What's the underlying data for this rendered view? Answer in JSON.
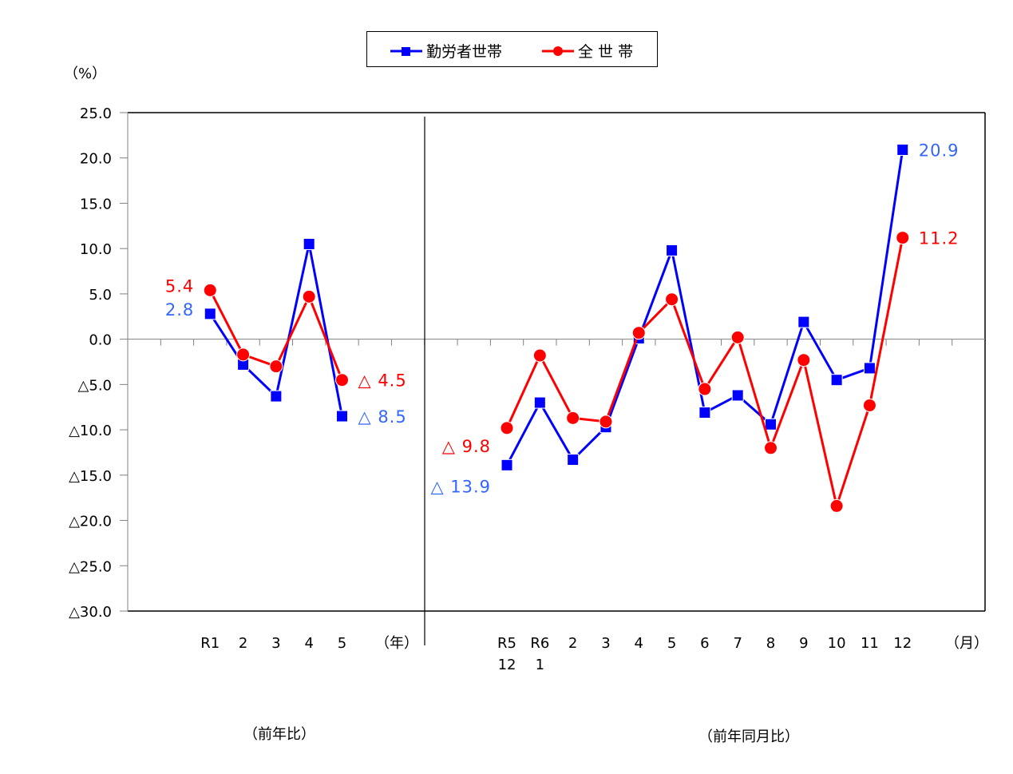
{
  "legend": {
    "series_worker": "勤労者世帯",
    "series_all": "全 世 帯"
  },
  "axis": {
    "y_unit": "（%）",
    "annual_unit": "（年）",
    "monthly_unit": "（月）"
  },
  "sections": {
    "annual": "（前年比）",
    "monthly": "（前年同月比）"
  },
  "colors": {
    "worker": "#0000ff",
    "all": "#ff0000",
    "worker_label": "#3366ff",
    "all_label": "#ff0000",
    "grid": "#808080",
    "frame": "#000000"
  },
  "chart_data": {
    "type": "line",
    "title": "",
    "ylabel": "（%）",
    "ylim": [
      -30,
      25
    ],
    "yticks": [
      25.0,
      20.0,
      15.0,
      10.0,
      5.0,
      0.0,
      -5.0,
      -10.0,
      -15.0,
      -20.0,
      -25.0,
      -30.0
    ],
    "ytick_labels": [
      "25.0",
      "20.0",
      "15.0",
      "10.0",
      "5.0",
      "0.0",
      "△5.0",
      "△10.0",
      "△15.0",
      "△20.0",
      "△25.0",
      "△30.0"
    ],
    "legend_position": "top-center",
    "grid": false,
    "panels": [
      {
        "name": "前年比",
        "xlabel": "（年）",
        "categories": [
          "R1",
          "2",
          "3",
          "4",
          "5"
        ],
        "category_sublabels": [
          "",
          "",
          "",
          "",
          ""
        ],
        "slot_start": 2,
        "series": [
          {
            "name": "勤労者世帯",
            "marker": "square",
            "values": [
              2.8,
              -2.8,
              -6.3,
              10.5,
              -8.5
            ]
          },
          {
            "name": "全 世 帯",
            "marker": "circle",
            "values": [
              5.4,
              -1.7,
              -3.0,
              4.7,
              -4.5
            ]
          }
        ],
        "annotations": [
          {
            "series": "全 世 帯",
            "index": 0,
            "text": "5.4",
            "pos": "left"
          },
          {
            "series": "勤労者世帯",
            "index": 0,
            "text": "2.8",
            "pos": "left"
          },
          {
            "series": "全 世 帯",
            "index": 4,
            "text": "△ 4.5",
            "pos": "right"
          },
          {
            "series": "勤労者世帯",
            "index": 4,
            "text": "△ 8.5",
            "pos": "right"
          }
        ]
      },
      {
        "name": "前年同月比",
        "xlabel": "（月）",
        "categories": [
          "R5",
          "R6",
          "2",
          "3",
          "4",
          "5",
          "6",
          "7",
          "8",
          "9",
          "10",
          "11",
          "12"
        ],
        "category_sublabels": [
          "12",
          "1",
          "",
          "",
          "",
          "",
          "",
          "",
          "",
          "",
          "",
          "",
          ""
        ],
        "slot_start": 11,
        "series": [
          {
            "name": "勤労者世帯",
            "marker": "square",
            "values": [
              -13.9,
              -7.0,
              -13.3,
              -9.7,
              0.1,
              9.8,
              -8.1,
              -6.2,
              -9.4,
              1.9,
              -4.5,
              -3.2,
              20.9
            ]
          },
          {
            "name": "全 世 帯",
            "marker": "circle",
            "values": [
              -9.8,
              -1.8,
              -8.7,
              -9.1,
              0.7,
              4.4,
              -5.5,
              0.2,
              -12.0,
              -2.3,
              -18.4,
              -7.3,
              11.2
            ]
          }
        ],
        "annotations": [
          {
            "series": "全 世 帯",
            "index": 0,
            "text": "△ 9.8",
            "pos": "left"
          },
          {
            "series": "勤労者世帯",
            "index": 0,
            "text": "△ 13.9",
            "pos": "left"
          },
          {
            "series": "勤労者世帯",
            "index": 12,
            "text": "20.9",
            "pos": "right"
          },
          {
            "series": "全 世 帯",
            "index": 12,
            "text": "11.2",
            "pos": "right"
          }
        ]
      }
    ]
  }
}
